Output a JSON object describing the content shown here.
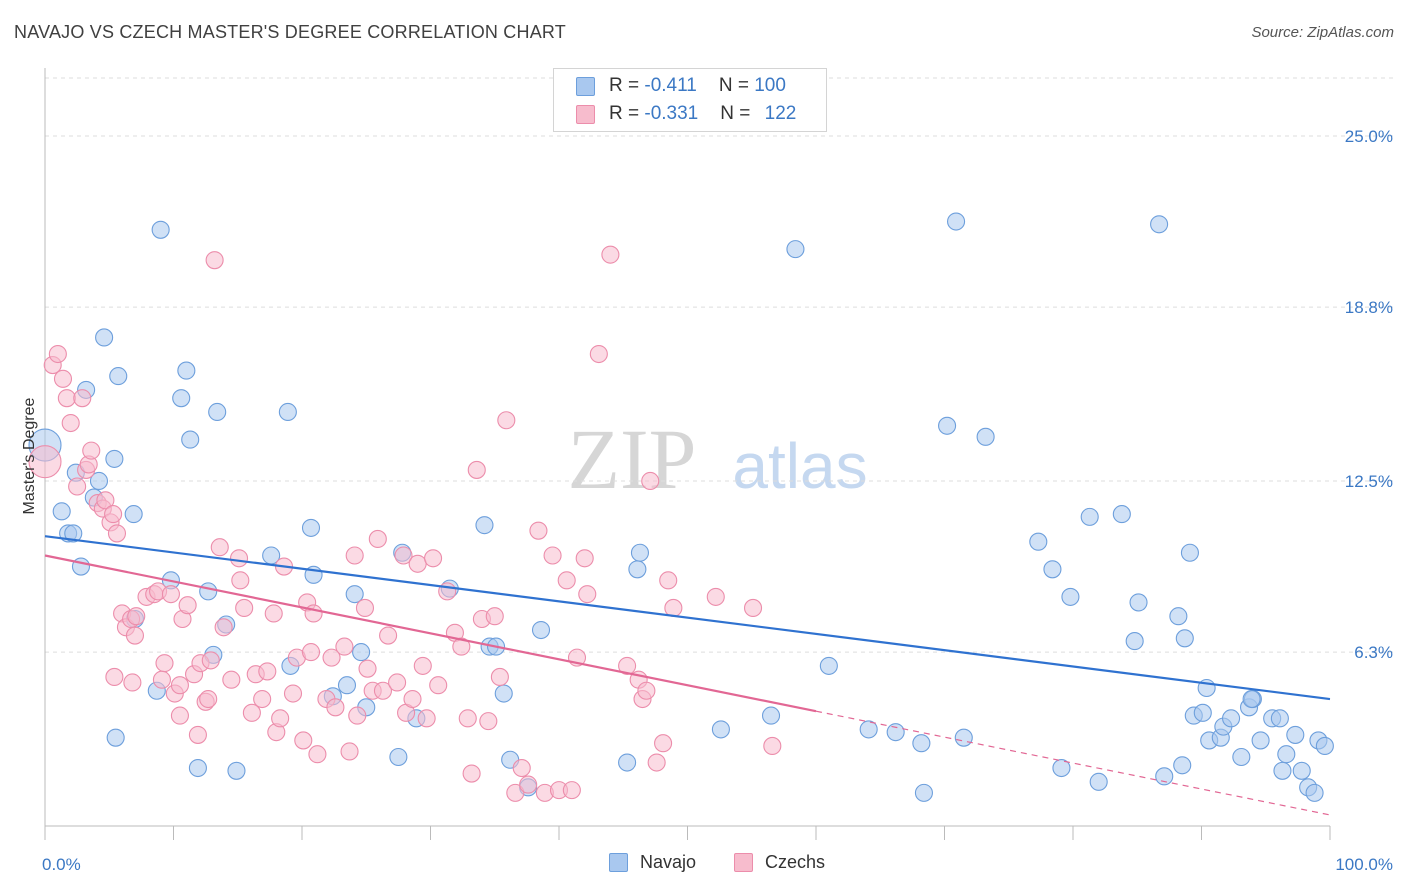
{
  "header": {
    "title": "NAVAJO VS CZECH MASTER'S DEGREE CORRELATION CHART",
    "source": "Source: ZipAtlas.com"
  },
  "watermark": {
    "zip": "ZIP",
    "atlas": "atlas"
  },
  "legend_top": {
    "rows": [
      {
        "r_label": "R = ",
        "r_value": "-0.411",
        "n_label": "N = ",
        "n_value": "100"
      },
      {
        "r_label": "R = ",
        "r_value": "-0.331",
        "n_label": "N = ",
        "n_value": "122"
      }
    ]
  },
  "legend_bottom": {
    "navajo": "Navajo",
    "czechs": "Czechs"
  },
  "colors": {
    "navajo_fill": "#a9c8ef",
    "navajo_stroke": "#6d9fdc",
    "navajo_line": "#2f72d0",
    "czech_fill": "#f7bccd",
    "czech_stroke": "#ec8dab",
    "czech_line": "#e26794",
    "tick_label": "#3b78c4",
    "grid": "#dddddd"
  },
  "chart_data": {
    "type": "scatter",
    "title": "NAVAJO VS CZECH MASTER'S DEGREE CORRELATION CHART",
    "ylabel": "Master's Degree",
    "xlabel": "",
    "xlim": [
      0,
      100
    ],
    "ylim": [
      0,
      27.1
    ],
    "x_tick_labels": [
      "0.0%",
      "100.0%"
    ],
    "y_ticks": [
      {
        "value": 6.3,
        "label": "6.3%"
      },
      {
        "value": 12.5,
        "label": "12.5%"
      },
      {
        "value": 18.8,
        "label": "18.8%"
      },
      {
        "value": 25.0,
        "label": "25.0%"
      }
    ],
    "grid": "horizontal dashed",
    "series": [
      {
        "name": "Navajo",
        "r": -0.411,
        "n": 100,
        "trend": {
          "x": [
            0,
            100
          ],
          "y": [
            10.5,
            4.6
          ]
        },
        "points": [
          [
            0,
            13.8
          ],
          [
            1.3,
            11.4
          ],
          [
            1.8,
            10.6
          ],
          [
            2.2,
            10.6
          ],
          [
            2.4,
            12.8
          ],
          [
            2.8,
            9.4
          ],
          [
            3.2,
            15.8
          ],
          [
            3.8,
            11.9
          ],
          [
            4.2,
            12.5
          ],
          [
            4.6,
            17.7
          ],
          [
            5.4,
            13.3
          ],
          [
            5.7,
            16.3
          ],
          [
            5.5,
            3.2
          ],
          [
            6.9,
            11.3
          ],
          [
            7.0,
            7.5
          ],
          [
            8.7,
            4.9
          ],
          [
            9.0,
            21.6
          ],
          [
            9.8,
            8.9
          ],
          [
            10.6,
            15.5
          ],
          [
            11.0,
            16.5
          ],
          [
            11.3,
            14.0
          ],
          [
            11.9,
            2.1
          ],
          [
            12.7,
            8.5
          ],
          [
            13.1,
            6.2
          ],
          [
            13.4,
            15.0
          ],
          [
            14.1,
            7.3
          ],
          [
            14.9,
            2.0
          ],
          [
            17.6,
            9.8
          ],
          [
            18.9,
            15.0
          ],
          [
            19.1,
            5.8
          ],
          [
            20.7,
            10.8
          ],
          [
            20.9,
            9.1
          ],
          [
            22.4,
            4.7
          ],
          [
            23.5,
            5.1
          ],
          [
            24.1,
            8.4
          ],
          [
            24.6,
            6.3
          ],
          [
            25.0,
            4.3
          ],
          [
            27.5,
            2.5
          ],
          [
            27.8,
            9.9
          ],
          [
            28.9,
            3.9
          ],
          [
            31.5,
            8.6
          ],
          [
            34.2,
            10.9
          ],
          [
            34.6,
            6.5
          ],
          [
            35.1,
            6.5
          ],
          [
            35.7,
            4.8
          ],
          [
            36.2,
            2.4
          ],
          [
            37.6,
            1.4
          ],
          [
            38.6,
            7.1
          ],
          [
            45.3,
            2.3
          ],
          [
            46.1,
            9.3
          ],
          [
            46.3,
            9.9
          ],
          [
            52.6,
            3.5
          ],
          [
            56.5,
            4.0
          ],
          [
            58.4,
            20.9
          ],
          [
            61.0,
            5.8
          ],
          [
            64.1,
            3.5
          ],
          [
            66.2,
            3.4
          ],
          [
            68.2,
            3.0
          ],
          [
            68.4,
            1.2
          ],
          [
            70.2,
            14.5
          ],
          [
            70.9,
            21.9
          ],
          [
            71.5,
            3.2
          ],
          [
            73.2,
            14.1
          ],
          [
            77.3,
            10.3
          ],
          [
            78.4,
            9.3
          ],
          [
            79.1,
            2.1
          ],
          [
            79.8,
            8.3
          ],
          [
            81.3,
            11.2
          ],
          [
            82.0,
            1.6
          ],
          [
            83.8,
            11.3
          ],
          [
            84.8,
            6.7
          ],
          [
            85.1,
            8.1
          ],
          [
            86.7,
            21.8
          ],
          [
            87.1,
            1.8
          ],
          [
            88.2,
            7.6
          ],
          [
            88.5,
            2.2
          ],
          [
            88.7,
            6.8
          ],
          [
            89.1,
            9.9
          ],
          [
            89.4,
            4.0
          ],
          [
            90.1,
            4.1
          ],
          [
            90.4,
            5.0
          ],
          [
            90.6,
            3.1
          ],
          [
            91.5,
            3.2
          ],
          [
            91.7,
            3.6
          ],
          [
            92.3,
            3.9
          ],
          [
            93.1,
            2.5
          ],
          [
            93.7,
            4.3
          ],
          [
            94.0,
            4.6
          ],
          [
            94.6,
            3.1
          ],
          [
            95.5,
            3.9
          ],
          [
            96.1,
            3.9
          ],
          [
            96.3,
            2.0
          ],
          [
            96.6,
            2.6
          ],
          [
            97.3,
            3.3
          ],
          [
            97.8,
            2.0
          ],
          [
            98.3,
            1.4
          ],
          [
            98.8,
            1.2
          ],
          [
            99.1,
            3.1
          ],
          [
            99.6,
            2.9
          ],
          [
            93.9,
            4.6
          ]
        ]
      },
      {
        "name": "Czechs",
        "r": -0.331,
        "n": 122,
        "trend": {
          "x": [
            0,
            100
          ],
          "y": [
            9.8,
            0.4
          ]
        },
        "points": [
          [
            0,
            13.2
          ],
          [
            0.6,
            16.7
          ],
          [
            1.0,
            17.1
          ],
          [
            1.4,
            16.2
          ],
          [
            1.7,
            15.5
          ],
          [
            2.0,
            14.6
          ],
          [
            2.5,
            12.3
          ],
          [
            2.9,
            15.5
          ],
          [
            3.2,
            12.9
          ],
          [
            3.4,
            13.1
          ],
          [
            3.6,
            13.6
          ],
          [
            4.1,
            11.7
          ],
          [
            4.5,
            11.5
          ],
          [
            4.7,
            11.8
          ],
          [
            5.1,
            11.0
          ],
          [
            5.3,
            11.3
          ],
          [
            5.6,
            10.6
          ],
          [
            6.0,
            7.7
          ],
          [
            6.3,
            7.2
          ],
          [
            6.7,
            7.5
          ],
          [
            7.0,
            6.9
          ],
          [
            7.1,
            7.6
          ],
          [
            7.9,
            8.3
          ],
          [
            8.5,
            8.4
          ],
          [
            8.8,
            8.5
          ],
          [
            9.1,
            5.3
          ],
          [
            9.3,
            5.9
          ],
          [
            9.8,
            8.4
          ],
          [
            10.1,
            4.8
          ],
          [
            10.5,
            4.0
          ],
          [
            10.7,
            7.5
          ],
          [
            11.1,
            8.0
          ],
          [
            11.6,
            5.5
          ],
          [
            12.1,
            5.9
          ],
          [
            12.5,
            4.5
          ],
          [
            12.7,
            4.6
          ],
          [
            12.9,
            6.0
          ],
          [
            13.6,
            10.1
          ],
          [
            13.9,
            7.2
          ],
          [
            14.5,
            5.3
          ],
          [
            15.1,
            9.7
          ],
          [
            15.2,
            8.9
          ],
          [
            15.5,
            7.9
          ],
          [
            16.1,
            4.1
          ],
          [
            16.4,
            5.5
          ],
          [
            16.9,
            4.6
          ],
          [
            17.3,
            5.6
          ],
          [
            17.8,
            7.7
          ],
          [
            18.0,
            3.4
          ],
          [
            18.3,
            3.9
          ],
          [
            18.6,
            9.4
          ],
          [
            19.3,
            4.8
          ],
          [
            19.6,
            6.1
          ],
          [
            20.1,
            3.1
          ],
          [
            20.4,
            8.1
          ],
          [
            20.7,
            6.3
          ],
          [
            20.9,
            7.7
          ],
          [
            21.2,
            2.6
          ],
          [
            21.9,
            4.6
          ],
          [
            22.3,
            6.1
          ],
          [
            22.6,
            4.3
          ],
          [
            23.3,
            6.5
          ],
          [
            23.7,
            2.7
          ],
          [
            24.1,
            9.8
          ],
          [
            24.3,
            4.0
          ],
          [
            24.9,
            7.9
          ],
          [
            25.1,
            5.7
          ],
          [
            25.5,
            4.9
          ],
          [
            25.9,
            10.4
          ],
          [
            26.3,
            4.9
          ],
          [
            26.7,
            6.9
          ],
          [
            27.4,
            5.2
          ],
          [
            27.9,
            9.8
          ],
          [
            28.1,
            4.1
          ],
          [
            28.6,
            4.6
          ],
          [
            29.0,
            9.5
          ],
          [
            29.4,
            5.8
          ],
          [
            29.7,
            3.9
          ],
          [
            30.6,
            5.1
          ],
          [
            31.3,
            8.5
          ],
          [
            31.9,
            7.0
          ],
          [
            32.4,
            6.5
          ],
          [
            32.9,
            3.9
          ],
          [
            33.2,
            1.9
          ],
          [
            33.6,
            12.9
          ],
          [
            34.0,
            7.5
          ],
          [
            34.5,
            3.8
          ],
          [
            35.0,
            7.6
          ],
          [
            35.4,
            5.4
          ],
          [
            35.9,
            14.7
          ],
          [
            36.6,
            1.2
          ],
          [
            37.1,
            2.1
          ],
          [
            37.6,
            1.5
          ],
          [
            38.4,
            10.7
          ],
          [
            38.9,
            1.2
          ],
          [
            39.5,
            9.8
          ],
          [
            40.0,
            1.3
          ],
          [
            40.6,
            8.9
          ],
          [
            41.0,
            1.3
          ],
          [
            41.4,
            6.1
          ],
          [
            42.0,
            9.7
          ],
          [
            42.2,
            8.4
          ],
          [
            43.1,
            17.1
          ],
          [
            44.0,
            20.7
          ],
          [
            45.3,
            5.8
          ],
          [
            46.2,
            5.3
          ],
          [
            46.5,
            4.6
          ],
          [
            46.8,
            4.9
          ],
          [
            47.1,
            12.5
          ],
          [
            47.6,
            2.3
          ],
          [
            48.1,
            3.0
          ],
          [
            48.5,
            8.9
          ],
          [
            48.9,
            7.9
          ],
          [
            52.2,
            8.3
          ],
          [
            55.1,
            7.9
          ],
          [
            56.6,
            2.9
          ],
          [
            13.2,
            20.5
          ],
          [
            5.4,
            5.4
          ],
          [
            6.8,
            5.2
          ],
          [
            10.5,
            5.1
          ],
          [
            11.9,
            3.3
          ],
          [
            30.2,
            9.7
          ]
        ]
      }
    ]
  }
}
